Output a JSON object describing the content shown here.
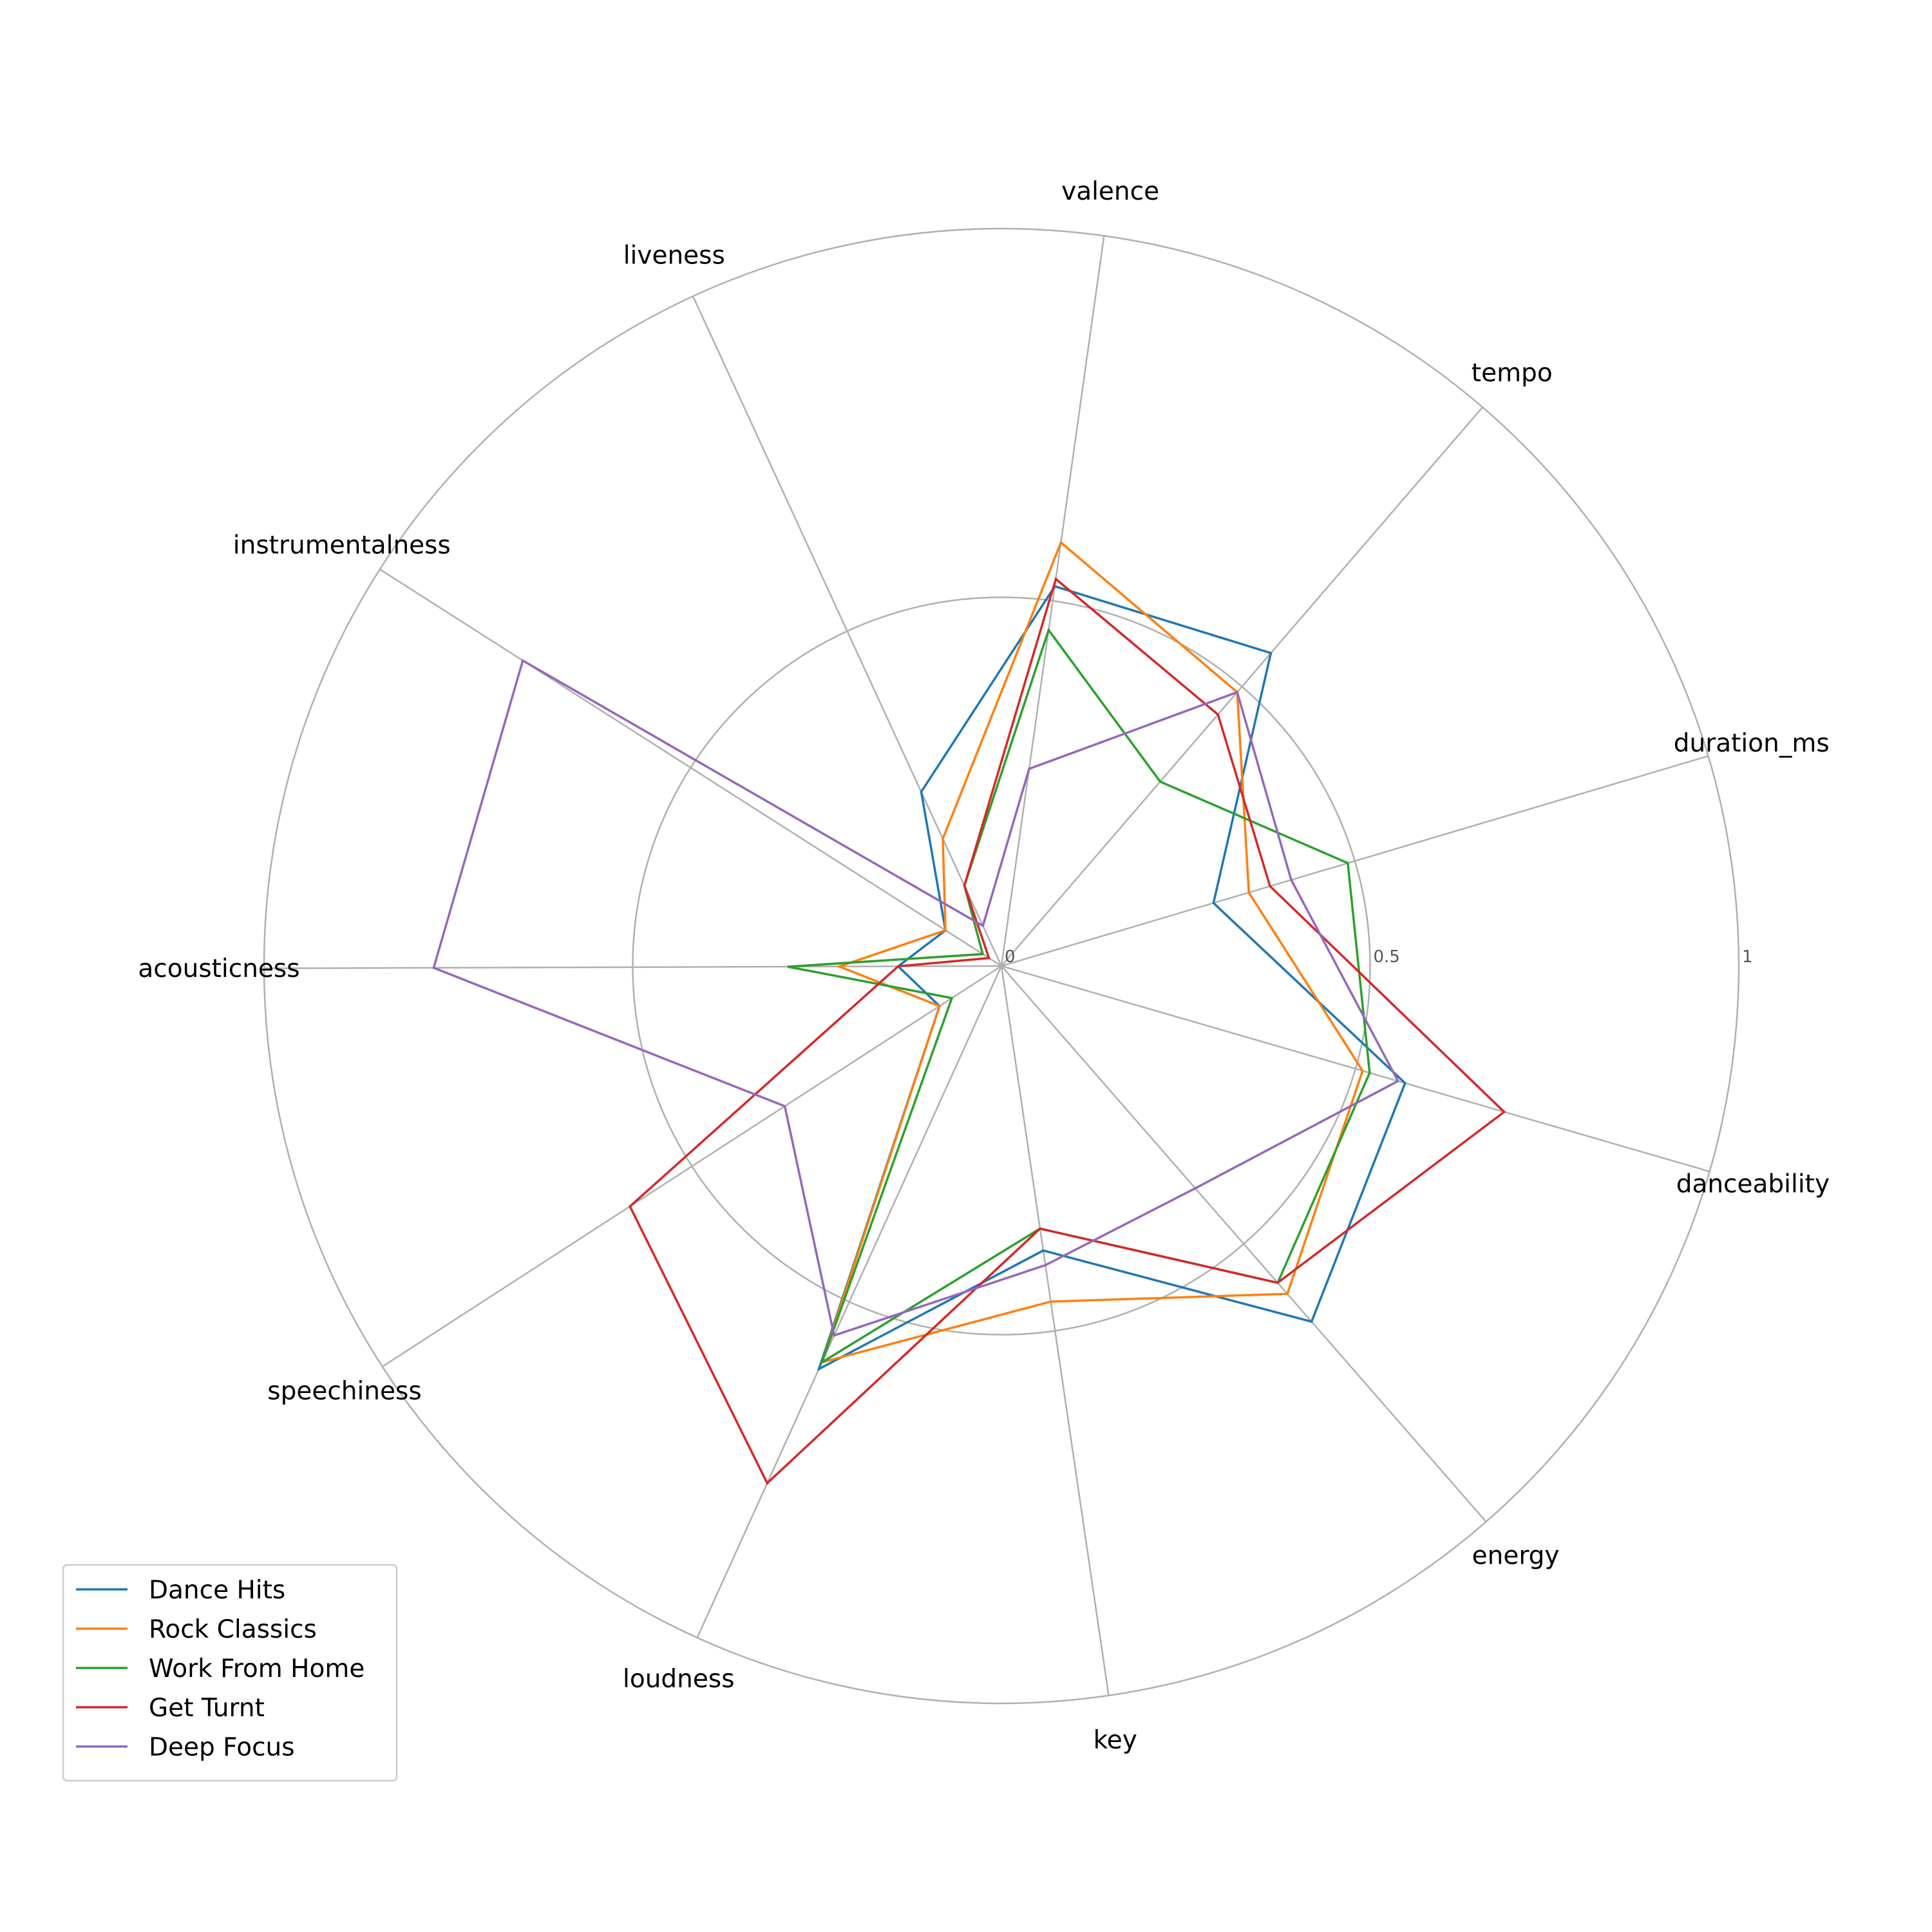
{
  "chart_data": {
    "type": "radar",
    "axes": [
      "valence",
      "liveness",
      "instrumentalness",
      "acousticness",
      "speechiness",
      "loudness",
      "key",
      "energy",
      "danceability",
      "duration_ms",
      "tempo"
    ],
    "rlim": [
      0,
      1
    ],
    "rticks": [
      0,
      0.5,
      1
    ],
    "rtick_labels": [
      "0",
      "0.5",
      "1"
    ],
    "grid": true,
    "legend_position": "lower-left",
    "series": [
      {
        "name": "Dance Hits",
        "color": "#1f77b4",
        "values": [
          0.52,
          0.26,
          0.09,
          0.14,
          0.1,
          0.6,
          0.39,
          0.64,
          0.57,
          0.3,
          0.56
        ]
      },
      {
        "name": "Rock Classics",
        "color": "#ff7f0e",
        "values": [
          0.58,
          0.19,
          0.09,
          0.22,
          0.1,
          0.59,
          0.46,
          0.59,
          0.51,
          0.35,
          0.49
        ]
      },
      {
        "name": "Work From Home",
        "color": "#2ca02c",
        "values": [
          0.46,
          0.12,
          0.03,
          0.29,
          0.08,
          0.59,
          0.36,
          0.57,
          0.52,
          0.49,
          0.33
        ]
      },
      {
        "name": "Get Turnt",
        "color": "#d62728",
        "values": [
          0.53,
          0.12,
          0.02,
          0.14,
          0.6,
          0.77,
          0.36,
          0.57,
          0.71,
          0.38,
          0.45
        ]
      },
      {
        "name": "Deep Focus",
        "color": "#9467bd",
        "values": [
          0.27,
          0.06,
          0.77,
          0.77,
          0.35,
          0.55,
          0.41,
          0.4,
          0.56,
          0.41,
          0.49
        ]
      }
    ]
  }
}
